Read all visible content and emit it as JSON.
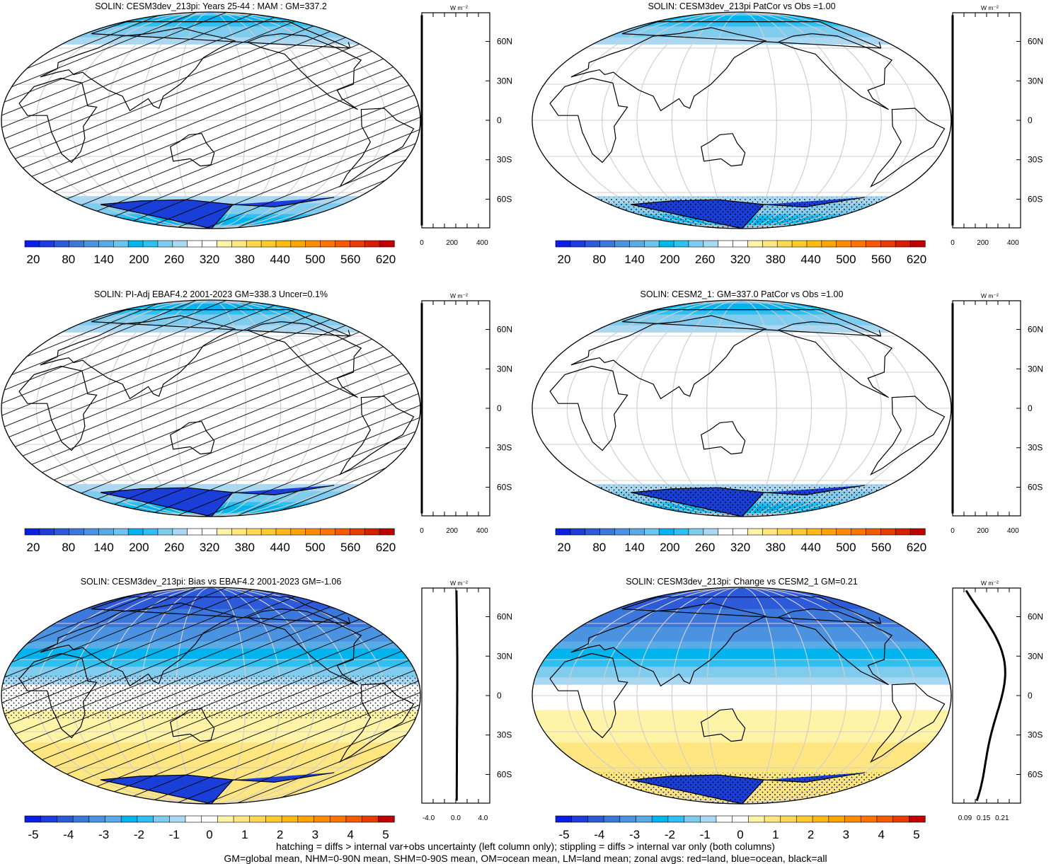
{
  "chart_data": [
    {
      "type": "heatmap",
      "title": "SOLIN: CESM3dev_213pi: Years 25-44 : MAM : GM=337.2",
      "colorbar": {
        "labels": [
          "20",
          "80",
          "140",
          "200",
          "260",
          "320",
          "380",
          "440",
          "500",
          "560",
          "620"
        ],
        "colors": "full"
      },
      "zonal": {
        "unit": "W m⁻²",
        "x_ticks": [
          "0",
          "200",
          "400"
        ],
        "xlim": [
          0,
          450
        ],
        "lat_ticks": [
          "60N",
          "30N",
          "0",
          "30S",
          "60S"
        ],
        "curve": "full"
      },
      "hatch": true,
      "stipple": "none"
    },
    {
      "type": "heatmap",
      "title": "SOLIN: CESM3dev_213pi PatCor vs Obs =1.00",
      "colorbar": {
        "labels": [
          "20",
          "80",
          "140",
          "200",
          "260",
          "320",
          "380",
          "440",
          "500",
          "560",
          "620"
        ],
        "colors": "full"
      },
      "zonal": {
        "unit": "W m⁻²",
        "x_ticks": [
          "0",
          "200",
          "400"
        ],
        "xlim": [
          0,
          450
        ],
        "lat_ticks": [
          "60N",
          "30N",
          "0",
          "30S",
          "60S"
        ],
        "curve": "full"
      },
      "hatch": false,
      "stipple": "antarctica"
    },
    {
      "type": "heatmap",
      "title": "SOLIN: PI-Adj EBAF4.2 2001-2023 GM=338.3 Uncer=0.1%",
      "colorbar": {
        "labels": [
          "20",
          "80",
          "140",
          "200",
          "260",
          "320",
          "380",
          "440",
          "500",
          "560",
          "620"
        ],
        "colors": "full"
      },
      "zonal": {
        "unit": "W m⁻²",
        "x_ticks": [
          "0",
          "200",
          "400"
        ],
        "xlim": [
          0,
          450
        ],
        "lat_ticks": [
          "60N",
          "30N",
          "0",
          "30S",
          "60S"
        ],
        "curve": "full"
      },
      "hatch": true,
      "stipple": "none"
    },
    {
      "type": "heatmap",
      "title": "SOLIN: CESM2_1: GM=337.0 PatCor vs Obs =1.00",
      "colorbar": {
        "labels": [
          "20",
          "80",
          "140",
          "200",
          "260",
          "320",
          "380",
          "440",
          "500",
          "560",
          "620"
        ],
        "colors": "full"
      },
      "zonal": {
        "unit": "W m⁻²",
        "x_ticks": [
          "0",
          "200",
          "400"
        ],
        "xlim": [
          0,
          450
        ],
        "lat_ticks": [
          "60N",
          "30N",
          "0",
          "30S",
          "60S"
        ],
        "curve": "full"
      },
      "hatch": false,
      "stipple": "antarctica"
    },
    {
      "type": "heatmap",
      "title": "SOLIN: CESM3dev_213pi: Bias vs EBAF4.2 2001-2023 GM=-1.06",
      "colorbar": {
        "labels": [
          "-5",
          "-4",
          "-3",
          "-2",
          "-1",
          "0",
          "1",
          "2",
          "3",
          "4",
          "5"
        ],
        "colors": "diff"
      },
      "zonal": {
        "unit": "W m⁻²",
        "x_ticks": [
          "-4.0",
          "0.0",
          "4.0"
        ],
        "xlim": [
          -5,
          5
        ],
        "lat_ticks": [
          "60N",
          "30N",
          "0",
          "30S",
          "60S"
        ],
        "curve": "bias"
      },
      "hatch": true,
      "stipple": "tropics"
    },
    {
      "type": "heatmap",
      "title": "SOLIN: CESM3dev_213pi: Change vs CESM2_1 GM=0.21",
      "colorbar": {
        "labels": [
          "-5",
          "-4",
          "-3",
          "-2",
          "-1",
          "0",
          "1",
          "2",
          "3",
          "4",
          "5"
        ],
        "colors": "diff"
      },
      "zonal": {
        "unit": "W m⁻²",
        "x_ticks": [
          "0.09",
          "0.15",
          "0.21"
        ],
        "xlim": [
          0.05,
          0.27
        ],
        "lat_ticks": [
          "60N",
          "30N",
          "0",
          "30S",
          "60S"
        ],
        "curve": "change"
      },
      "hatch": false,
      "stipple": "antarctica"
    }
  ],
  "palettes": {
    "full": [
      "#0a1ee6",
      "#1c3cdc",
      "#2d5ad8",
      "#3c78dc",
      "#4b93e1",
      "#5aaae6",
      "#6cc4ef",
      "#00b4ee",
      "#2fbff1",
      "#80ccef",
      "#aad8f3",
      "#ffffff",
      "#ffffff",
      "#fff3a8",
      "#ffe680",
      "#ffd84f",
      "#ffca2c",
      "#ffb915",
      "#ffa400",
      "#ff8c00",
      "#ff7400",
      "#f55a00",
      "#e83c00",
      "#d61e00",
      "#c00000"
    ],
    "diff": [
      "#0a1ee6",
      "#1c3cdc",
      "#2d5ad8",
      "#3c78dc",
      "#4b93e1",
      "#5aaae6",
      "#00b4ee",
      "#2fbff1",
      "#80ccef",
      "#aad8f3",
      "#ffffff",
      "#ffffff",
      "#fff3a8",
      "#ffe680",
      "#ffd84f",
      "#ffca2c",
      "#ffb915",
      "#ffa400",
      "#ff8c00",
      "#ff7400",
      "#f55a00",
      "#e83c00",
      "#c00000"
    ]
  },
  "footer": {
    "line1": "hatching = diffs > internal var+obs uncertainty (left column only); stippling = diffs > internal var only (both columns)",
    "line2": "GM=global mean, NHM=0-90N mean, SHM=0-90S mean, OM=ocean mean, LM=land mean; zonal avgs: red=land, blue=ocean, black=all"
  }
}
